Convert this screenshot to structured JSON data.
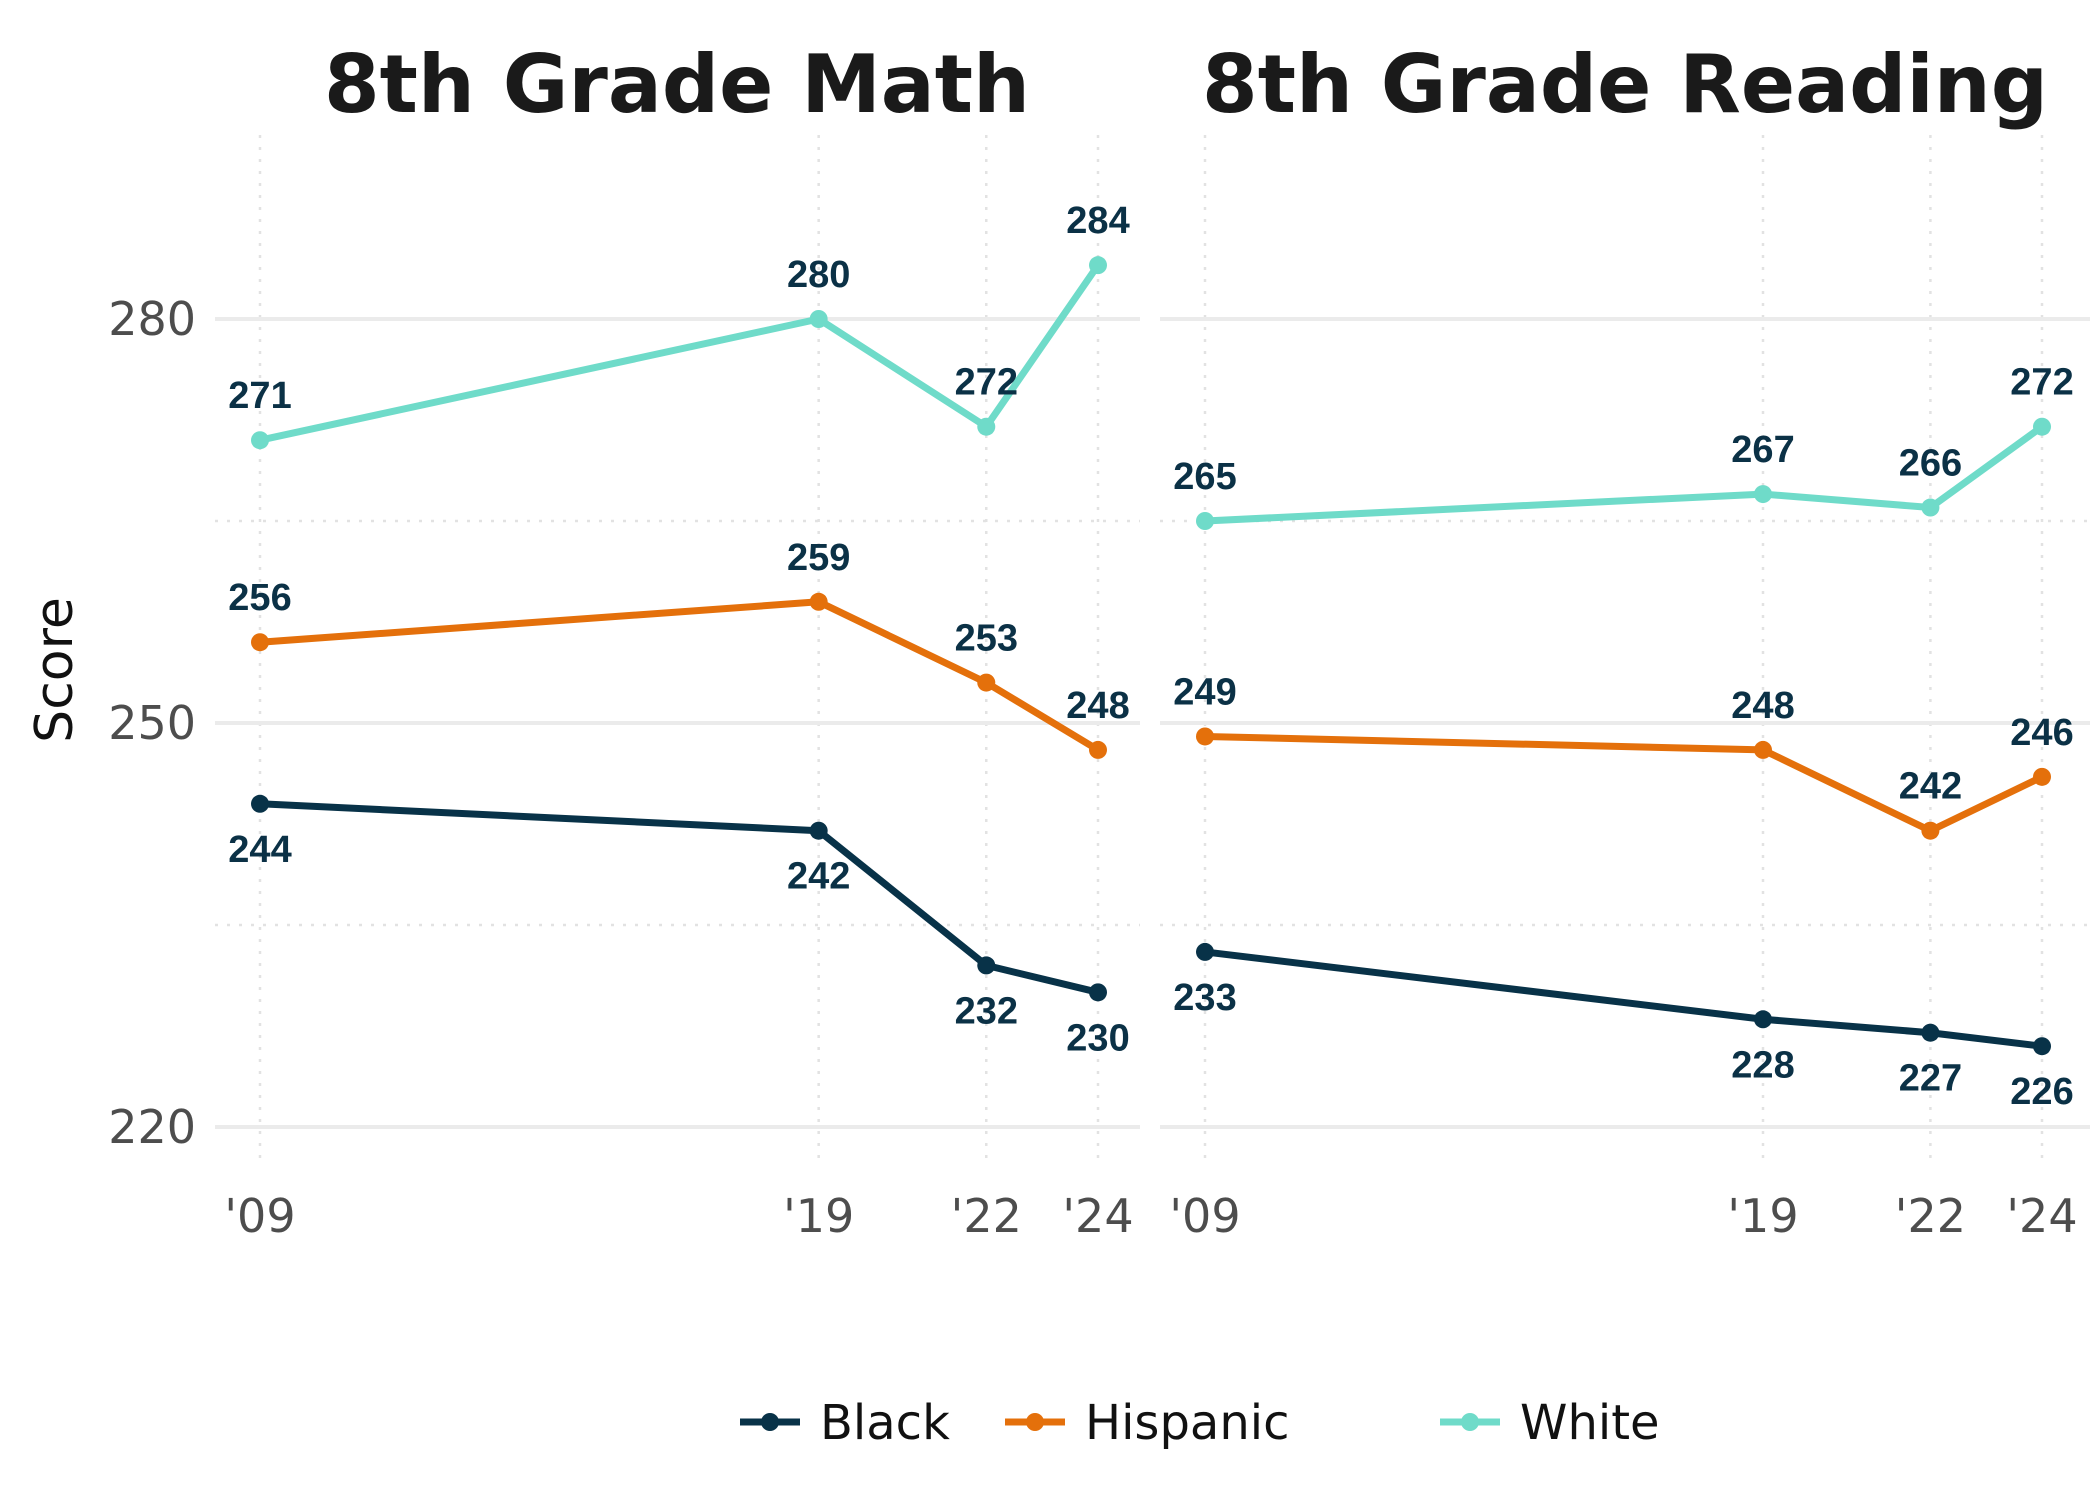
{
  "ylabel": "Score",
  "colors": {
    "Black": "#083248",
    "Hispanic": "#e4700b",
    "White": "#6fdbc9"
  },
  "legend": {
    "placement": "bottom",
    "entries": [
      "Black",
      "Hispanic",
      "White"
    ]
  },
  "chart_data": [
    {
      "type": "line",
      "title": "8th Grade Math",
      "xlabel": "",
      "ylabel": "Score",
      "x": [
        2009,
        2019,
        2022,
        2024
      ],
      "x_tick_labels": [
        "'09",
        "'19",
        "'22",
        "'24"
      ],
      "y_ticks": [
        220,
        250,
        280
      ],
      "xlim": [
        2009,
        2024
      ],
      "ylim": [
        220,
        284
      ],
      "grid": true,
      "series": [
        {
          "name": "Black",
          "values": [
            244,
            242,
            232,
            230
          ]
        },
        {
          "name": "Hispanic",
          "values": [
            256,
            259,
            253,
            248
          ]
        },
        {
          "name": "White",
          "values": [
            271,
            280,
            272,
            284
          ]
        }
      ]
    },
    {
      "type": "line",
      "title": "8th Grade Reading",
      "xlabel": "",
      "ylabel": "",
      "x": [
        2009,
        2019,
        2022,
        2024
      ],
      "x_tick_labels": [
        "'09",
        "'19",
        "'22",
        "'24"
      ],
      "y_ticks": [
        220,
        250,
        280
      ],
      "xlim": [
        2009,
        2024
      ],
      "ylim": [
        220,
        284
      ],
      "grid": true,
      "series": [
        {
          "name": "Black",
          "values": [
            233,
            228,
            227,
            226
          ]
        },
        {
          "name": "Hispanic",
          "values": [
            249,
            248,
            242,
            246
          ]
        },
        {
          "name": "White",
          "values": [
            265,
            267,
            266,
            272
          ]
        }
      ]
    }
  ]
}
